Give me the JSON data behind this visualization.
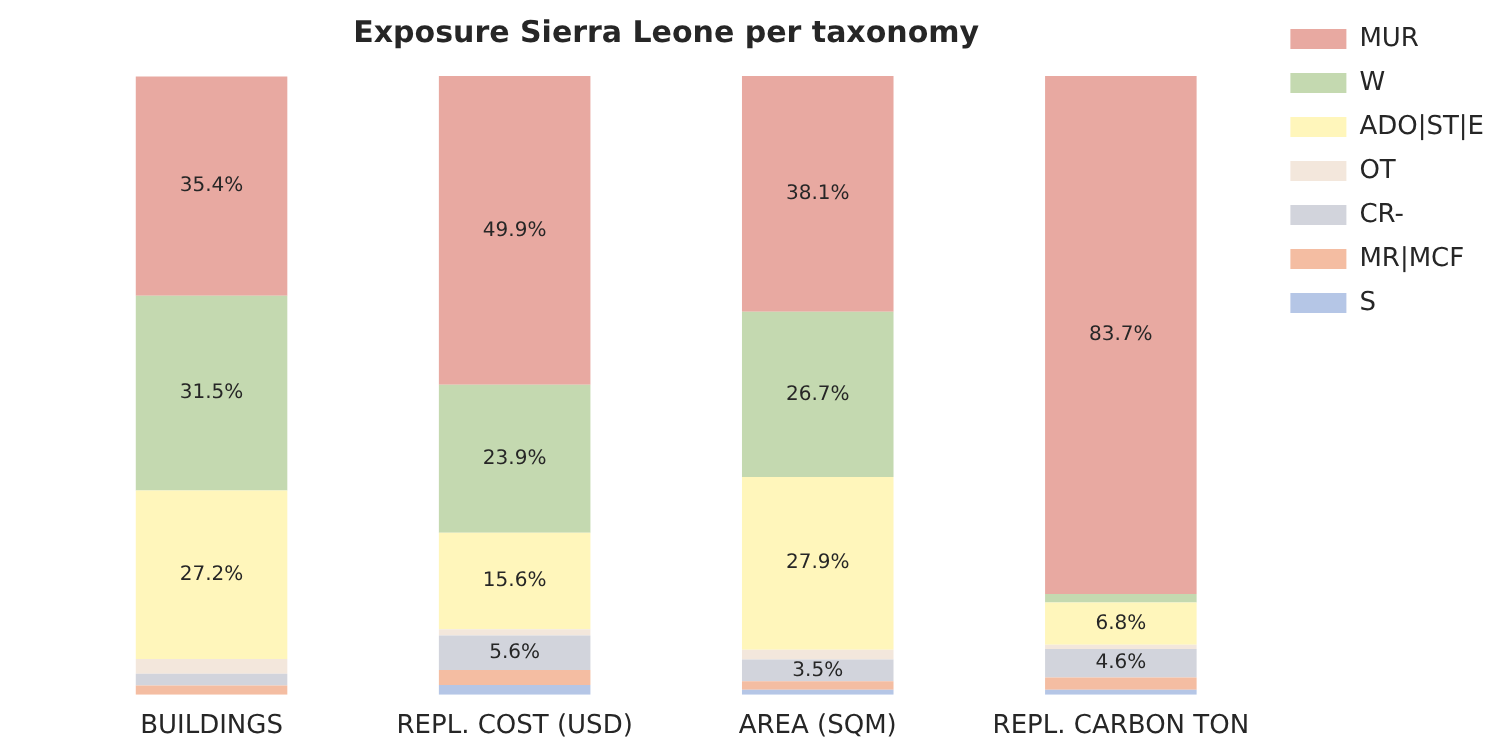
{
  "chart_data": {
    "type": "bar",
    "title": "Exposure Sierra Leone per taxonomy",
    "categories": [
      "BUILDINGS",
      "REPL. COST (USD)",
      "AREA (SQM)",
      "REPL. CARBON TON"
    ],
    "stacked": true,
    "legend": "top right",
    "tick_labels": "x",
    "series": [
      {
        "name": "S",
        "color": "#b5c6e6",
        "values": [
          0,
          1.6,
          0.8,
          0.8
        ],
        "value_labels": [
          null,
          null,
          null,
          null
        ]
      },
      {
        "name": "MR|MCF",
        "color": "#f4bda2",
        "values": [
          1.5,
          2.4,
          1.4,
          2.0
        ],
        "value_labels": [
          null,
          null,
          null,
          null
        ]
      },
      {
        "name": "CR-",
        "color": "#d2d4dc",
        "values": [
          1.9,
          5.6,
          3.5,
          4.6
        ],
        "value_labels": [
          null,
          "5.6%",
          "3.5%",
          "4.6%"
        ]
      },
      {
        "name": "OT",
        "color": "#f3e7dc",
        "values": [
          2.4,
          1.0,
          1.6,
          0.7
        ],
        "value_labels": [
          null,
          null,
          null,
          null
        ]
      },
      {
        "name": "ADO|ST|E",
        "color": "#fff6bb",
        "values": [
          27.2,
          15.6,
          27.9,
          6.8
        ],
        "value_labels": [
          "27.2%",
          "15.6%",
          "27.9%",
          "6.8%"
        ]
      },
      {
        "name": "W",
        "color": "#c4d9b0",
        "values": [
          31.5,
          23.9,
          26.7,
          1.4
        ],
        "value_labels": [
          "31.5%",
          "23.9%",
          "26.7%",
          null
        ]
      },
      {
        "name": "MUR",
        "color": "#e8a9a1",
        "values": [
          35.4,
          49.9,
          38.1,
          83.7
        ],
        "value_labels": [
          "35.4%",
          "49.9%",
          "38.1%",
          "83.7%"
        ]
      }
    ]
  }
}
